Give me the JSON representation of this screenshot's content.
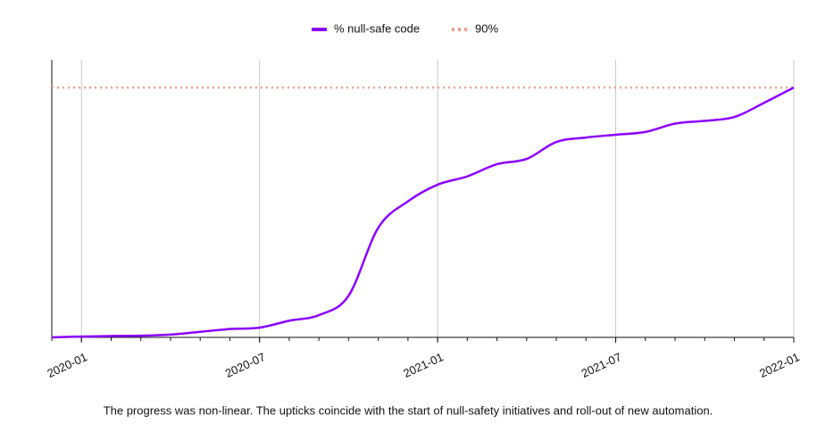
{
  "chart_data": {
    "type": "line",
    "caption": "The progress was non-linear. The upticks coincide with the start of null-safety initiatives and roll-out of new automation.",
    "x": [
      "2019-12",
      "2020-01",
      "2020-02",
      "2020-03",
      "2020-04",
      "2020-05",
      "2020-06",
      "2020-07",
      "2020-08",
      "2020-09",
      "2020-10",
      "2020-11",
      "2020-12",
      "2021-01",
      "2021-02",
      "2021-03",
      "2021-04",
      "2021-05",
      "2021-06",
      "2021-07",
      "2021-08",
      "2021-09",
      "2021-10",
      "2021-11",
      "2021-12",
      "2022-01"
    ],
    "series": [
      {
        "name": "% null-safe code",
        "color": "#8b00ff",
        "values": [
          0,
          0.3,
          0.5,
          0.6,
          1,
          2,
          3,
          3.5,
          6,
          8,
          15,
          39.5,
          49,
          55,
          58,
          62.4,
          64.3,
          70.4,
          72,
          73,
          74,
          77,
          78,
          79.4,
          84.5,
          90
        ]
      }
    ],
    "reference_line": {
      "name": "90%",
      "value": 90,
      "color": "#f0a090"
    },
    "xlim": [
      "2019-12",
      "2022-01"
    ],
    "xticks": [
      "2020-01",
      "2020-07",
      "2021-01",
      "2021-07",
      "2022-01"
    ],
    "ylim": [
      0,
      100
    ],
    "grid": true,
    "legend": "top"
  }
}
